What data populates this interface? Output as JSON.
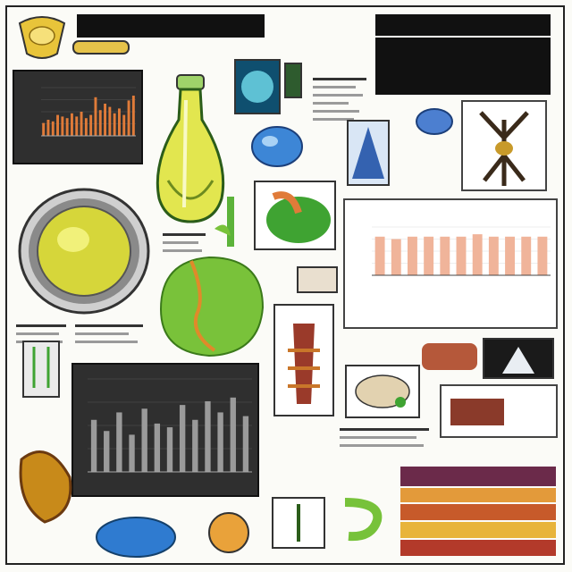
{
  "banners": {
    "top_left": "",
    "top_right_small": "",
    "top_right_large": ""
  },
  "colors": {
    "background": "#fbfbf7",
    "frame": "#222222",
    "bar_orange": "#e07b39",
    "bar_salmon": "#f0b49a",
    "bar_gray": "#9a9a9a",
    "flask_yellow": "#d9e04a",
    "leaf_green": "#79c23a"
  },
  "icons": [
    "flask-icon",
    "lens-icon",
    "leaf-icon",
    "microscope-icon",
    "specimen-icon",
    "book-stack-icon"
  ],
  "chart_data": [
    {
      "type": "bar",
      "title": "",
      "categories": [
        "",
        "",
        "",
        "",
        "",
        "",
        "",
        "",
        "",
        "",
        "",
        "",
        "",
        "",
        "",
        "",
        "",
        "",
        "",
        ""
      ],
      "values": [
        8,
        10,
        9,
        13,
        12,
        11,
        14,
        12,
        15,
        11,
        13,
        24,
        16,
        20,
        18,
        14,
        17,
        13,
        22,
        25
      ],
      "ylim": [
        0,
        30
      ],
      "grid": true
    },
    {
      "type": "bar",
      "title": "",
      "categories": [
        "",
        "",
        "",
        "",
        "",
        "",
        "",
        "",
        "",
        "",
        ""
      ],
      "values": [
        16,
        15,
        16,
        16,
        16,
        16,
        17,
        16,
        16,
        16,
        16
      ],
      "ylim": [
        0,
        20
      ],
      "grid": true
    },
    {
      "type": "bar",
      "title": "",
      "categories": [
        "",
        "",
        "",
        "",
        "",
        "",
        "",
        "",
        "",
        "",
        "",
        "",
        ""
      ],
      "values": [
        14,
        11,
        16,
        10,
        17,
        13,
        12,
        18,
        14,
        19,
        16,
        20,
        15
      ],
      "ylim": [
        0,
        25
      ],
      "grid": true
    }
  ]
}
